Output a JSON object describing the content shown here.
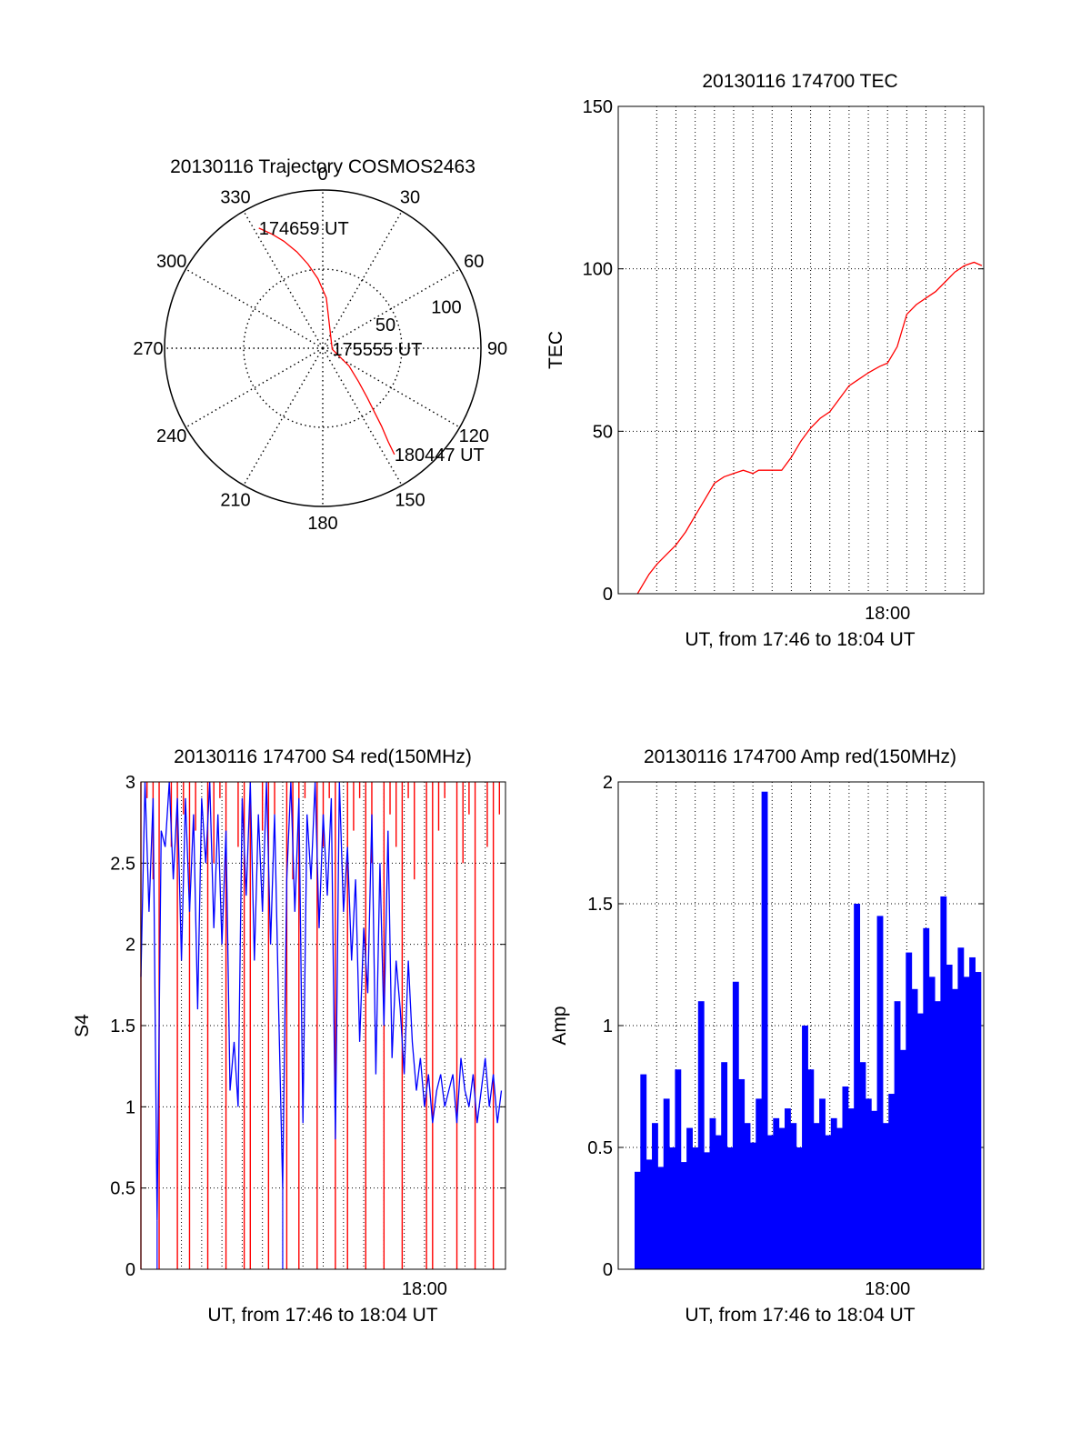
{
  "colors": {
    "trace": "#ff0000",
    "secondary": "#0000ff",
    "grid": "#000000"
  },
  "chart_data": [
    {
      "id": "trajectory",
      "type": "scatter",
      "projection": "polar",
      "title": "20130116 Trajectory COSMOS2463",
      "angle_labels": [
        "0",
        "30",
        "60",
        "90",
        "120",
        "150",
        "180",
        "210",
        "240",
        "270",
        "300",
        "330"
      ],
      "angles_deg": [
        0,
        30,
        60,
        90,
        120,
        150,
        180,
        210,
        240,
        270,
        300,
        330
      ],
      "radial_ticks": [
        50,
        100
      ],
      "radial_tick_labels": [
        "50",
        "100"
      ],
      "rlim": [
        0,
        100
      ],
      "track": {
        "azimuth_deg": [
          332,
          336,
          340,
          345,
          350,
          356,
          4,
          96,
          124,
          133,
          138,
          141,
          143,
          145,
          146
        ],
        "radius": [
          86,
          79,
          72,
          63,
          54,
          44,
          32,
          6,
          20,
          31,
          42,
          52,
          62,
          72,
          81
        ]
      },
      "annotations": [
        {
          "text": "174659 UT",
          "azimuth_deg": 332,
          "radius": 86
        },
        {
          "text": "175555 UT",
          "azimuth_deg": 96,
          "radius": 6
        },
        {
          "text": "180447 UT",
          "azimuth_deg": 146,
          "radius": 81
        }
      ]
    },
    {
      "id": "tec",
      "type": "line",
      "title": "20130116 174700 TEC",
      "ylabel": "TEC",
      "xlabel": "UT, from 17:46 to 18:04 UT",
      "xlim_minutes": [
        17.8,
        18.7
      ],
      "ylim": [
        0,
        150
      ],
      "yticks": [
        0,
        50,
        100,
        150
      ],
      "ytick_labels": [
        "0",
        "50",
        "100",
        "150"
      ],
      "xtick_minutes": [
        60
      ],
      "xtick_labels": [
        "18:00"
      ],
      "grid_x_minutes": [
        48,
        49,
        50,
        51,
        52,
        53,
        54,
        55,
        56,
        57,
        58,
        59,
        60,
        61,
        62,
        63,
        64
      ],
      "series": [
        {
          "x_minutes": [
            47.0,
            47.3,
            47.6,
            48.0,
            48.5,
            49.0,
            49.5,
            50.0,
            50.5,
            51.0,
            51.5,
            52.0,
            52.5,
            53.0,
            53.3,
            53.6,
            54.0,
            54.5,
            55.0,
            55.5,
            56.0,
            56.5,
            57.0,
            57.5,
            58.0,
            58.5,
            59.0,
            59.3,
            59.6,
            60.0,
            60.5,
            61.0,
            61.5,
            62.0,
            62.5,
            63.0,
            63.5,
            64.0,
            64.5,
            64.9
          ],
          "values": [
            0,
            3,
            6,
            9,
            12,
            15,
            19,
            24,
            29,
            34,
            36,
            37,
            38,
            37,
            38,
            38,
            38,
            38,
            42,
            47,
            51,
            54,
            56,
            60,
            64,
            66,
            68,
            69,
            70,
            71,
            76,
            86,
            89,
            91,
            93,
            96,
            99,
            101,
            102,
            101
          ]
        }
      ]
    },
    {
      "id": "s4",
      "type": "line",
      "title": "20130116 174700 S4 red(150MHz)",
      "ylabel": "S4",
      "xlabel": "UT, from 17:46 to 18:04 UT",
      "xlim_minutes": [
        46,
        64
      ],
      "ylim": [
        0,
        3
      ],
      "yticks": [
        0,
        0.5,
        1,
        1.5,
        2,
        2.5,
        3
      ],
      "ytick_labels": [
        "0",
        "0.5",
        "1",
        "1.5",
        "2",
        "2.5",
        "3"
      ],
      "xtick_minutes": [
        60
      ],
      "xtick_labels": [
        "18:00"
      ],
      "grid_x_minutes": [
        48,
        49,
        50,
        51,
        52,
        53,
        54,
        55,
        56,
        57,
        58,
        59,
        60,
        61,
        62,
        63
      ],
      "series": [
        {
          "color": "#0000ff",
          "x_minutes": [
            46.0,
            46.2,
            46.4,
            46.6,
            46.8,
            47.0,
            47.2,
            47.4,
            47.6,
            47.8,
            48.0,
            48.2,
            48.4,
            48.6,
            48.8,
            49.0,
            49.2,
            49.4,
            49.6,
            49.8,
            50.0,
            50.2,
            50.4,
            50.6,
            50.8,
            51.0,
            51.2,
            51.4,
            51.6,
            51.8,
            52.0,
            52.2,
            52.4,
            52.6,
            52.8,
            53.0,
            53.2,
            53.4,
            53.6,
            53.8,
            54.0,
            54.2,
            54.4,
            54.6,
            54.8,
            55.0,
            55.2,
            55.4,
            55.6,
            55.8,
            56.0,
            56.2,
            56.4,
            56.6,
            56.8,
            57.0,
            57.2,
            57.4,
            57.6,
            57.8,
            58.0,
            58.2,
            58.4,
            58.6,
            58.8,
            59.0,
            59.2,
            59.4,
            59.6,
            59.8,
            60.0,
            60.2,
            60.4,
            60.6,
            60.8,
            61.0,
            61.2,
            61.4,
            61.6,
            61.8,
            62.0,
            62.2,
            62.4,
            62.6,
            62.8,
            63.0,
            63.2,
            63.4,
            63.6,
            63.8
          ],
          "values": [
            1.8,
            3.0,
            2.2,
            2.9,
            0.3,
            2.7,
            2.6,
            3.0,
            2.4,
            2.9,
            1.9,
            2.9,
            2.2,
            2.8,
            1.6,
            2.9,
            2.5,
            3.0,
            2.1,
            2.8,
            2.0,
            2.7,
            1.1,
            1.4,
            1.0,
            2.9,
            2.3,
            3.0,
            1.9,
            2.8,
            2.2,
            3.0,
            2.0,
            2.8,
            1.6,
            0.5,
            2.4,
            3.0,
            2.2,
            2.9,
            0.9,
            2.8,
            2.4,
            3.0,
            2.1,
            2.8,
            2.3,
            2.9,
            0.8,
            3.0,
            2.2,
            2.6,
            1.9,
            2.4,
            1.4,
            2.1,
            1.7,
            2.8,
            1.2,
            2.5,
            1.5,
            2.7,
            1.3,
            1.9,
            1.6,
            1.2,
            1.9,
            1.4,
            1.1,
            1.3,
            1.0,
            1.2,
            0.9,
            1.1,
            1.2,
            1.0,
            1.1,
            1.2,
            0.9,
            1.3,
            1.1,
            1.0,
            1.2,
            0.9,
            1.1,
            1.3,
            1.0,
            1.2,
            0.9,
            1.1
          ]
        },
        {
          "color": "#ff0000",
          "x_minutes": [
            46.0,
            46.3,
            46.6,
            46.9,
            47.2,
            47.5,
            47.8,
            48.1,
            48.4,
            48.7,
            49.0,
            49.3,
            49.6,
            49.9,
            50.2,
            50.5,
            50.8,
            51.1,
            51.4,
            51.7,
            52.0,
            52.3,
            52.6,
            52.9,
            53.2,
            53.5,
            53.8,
            54.1,
            54.4,
            54.7,
            55.0,
            55.3,
            55.6,
            55.9,
            56.2,
            56.5,
            56.8,
            57.1,
            57.4,
            57.7,
            58.0,
            58.3,
            58.6,
            58.9,
            59.2,
            59.5,
            59.8,
            60.1,
            60.4,
            60.7,
            61.0,
            61.3,
            61.6,
            61.9,
            62.2,
            62.5,
            62.8,
            63.1,
            63.4,
            63.7
          ],
          "values": [
            0.0,
            2.9,
            2.4,
            0.0,
            3.0,
            2.6,
            0.0,
            2.8,
            0.0,
            2.7,
            3.0,
            0.0,
            2.5,
            2.9,
            0.0,
            3.0,
            2.6,
            0.0,
            0.0,
            3.0,
            2.7,
            0.0,
            2.8,
            3.0,
            0.0,
            2.4,
            0.0,
            2.9,
            3.0,
            0.0,
            2.6,
            2.9,
            0.0,
            3.0,
            0.0,
            2.7,
            2.9,
            0.0,
            2.5,
            3.0,
            0.0,
            2.8,
            2.6,
            0.0,
            2.9,
            2.4,
            3.0,
            0.0,
            0.0,
            2.7,
            2.9,
            3.0,
            0.0,
            2.5,
            2.8,
            0.0,
            3.0,
            2.6,
            0.0,
            2.8
          ]
        }
      ]
    },
    {
      "id": "amp",
      "type": "bar",
      "title": "20130116 174700 Amp red(150MHz)",
      "ylabel": "Amp",
      "xlabel": "UT, from 17:46 to 18:04 UT",
      "xlim_minutes": [
        46,
        64
      ],
      "ylim": [
        0,
        2
      ],
      "yticks": [
        0,
        0.5,
        1,
        1.5,
        2
      ],
      "ytick_labels": [
        "0",
        "0.5",
        "1",
        "1.5",
        "2"
      ],
      "xtick_minutes": [
        60
      ],
      "xtick_labels": [
        "18:00"
      ],
      "grid_x_minutes": [
        48,
        49,
        50,
        51,
        52,
        53,
        54,
        55,
        56,
        57,
        58,
        59,
        60,
        61,
        62,
        63
      ],
      "series": [
        {
          "color": "#0000ff",
          "x_minutes": [
            47.0,
            47.3,
            47.6,
            47.9,
            48.2,
            48.5,
            48.8,
            49.1,
            49.4,
            49.7,
            50.0,
            50.3,
            50.6,
            50.9,
            51.2,
            51.5,
            51.8,
            52.1,
            52.4,
            52.7,
            53.0,
            53.3,
            53.6,
            53.9,
            54.2,
            54.5,
            54.8,
            55.1,
            55.4,
            55.7,
            56.0,
            56.3,
            56.6,
            56.9,
            57.2,
            57.5,
            57.8,
            58.1,
            58.4,
            58.7,
            59.0,
            59.3,
            59.6,
            59.9,
            60.2,
            60.5,
            60.8,
            61.1,
            61.4,
            61.7,
            62.0,
            62.3,
            62.6,
            62.9,
            63.2,
            63.5,
            63.8,
            64.1,
            64.4,
            64.7
          ],
          "values": [
            0.4,
            0.8,
            0.45,
            0.6,
            0.42,
            0.7,
            0.5,
            0.82,
            0.44,
            0.58,
            0.5,
            1.1,
            0.48,
            0.62,
            0.55,
            0.85,
            0.5,
            1.18,
            0.78,
            0.6,
            0.52,
            0.7,
            1.96,
            0.55,
            0.62,
            0.58,
            0.66,
            0.6,
            0.5,
            1.0,
            0.82,
            0.6,
            0.7,
            0.55,
            0.62,
            0.58,
            0.75,
            0.66,
            1.5,
            0.85,
            0.7,
            0.65,
            1.45,
            0.6,
            0.72,
            1.1,
            0.9,
            1.3,
            1.15,
            1.05,
            1.4,
            1.2,
            1.1,
            1.53,
            1.25,
            1.15,
            1.32,
            1.2,
            1.28,
            1.22
          ]
        }
      ]
    }
  ]
}
